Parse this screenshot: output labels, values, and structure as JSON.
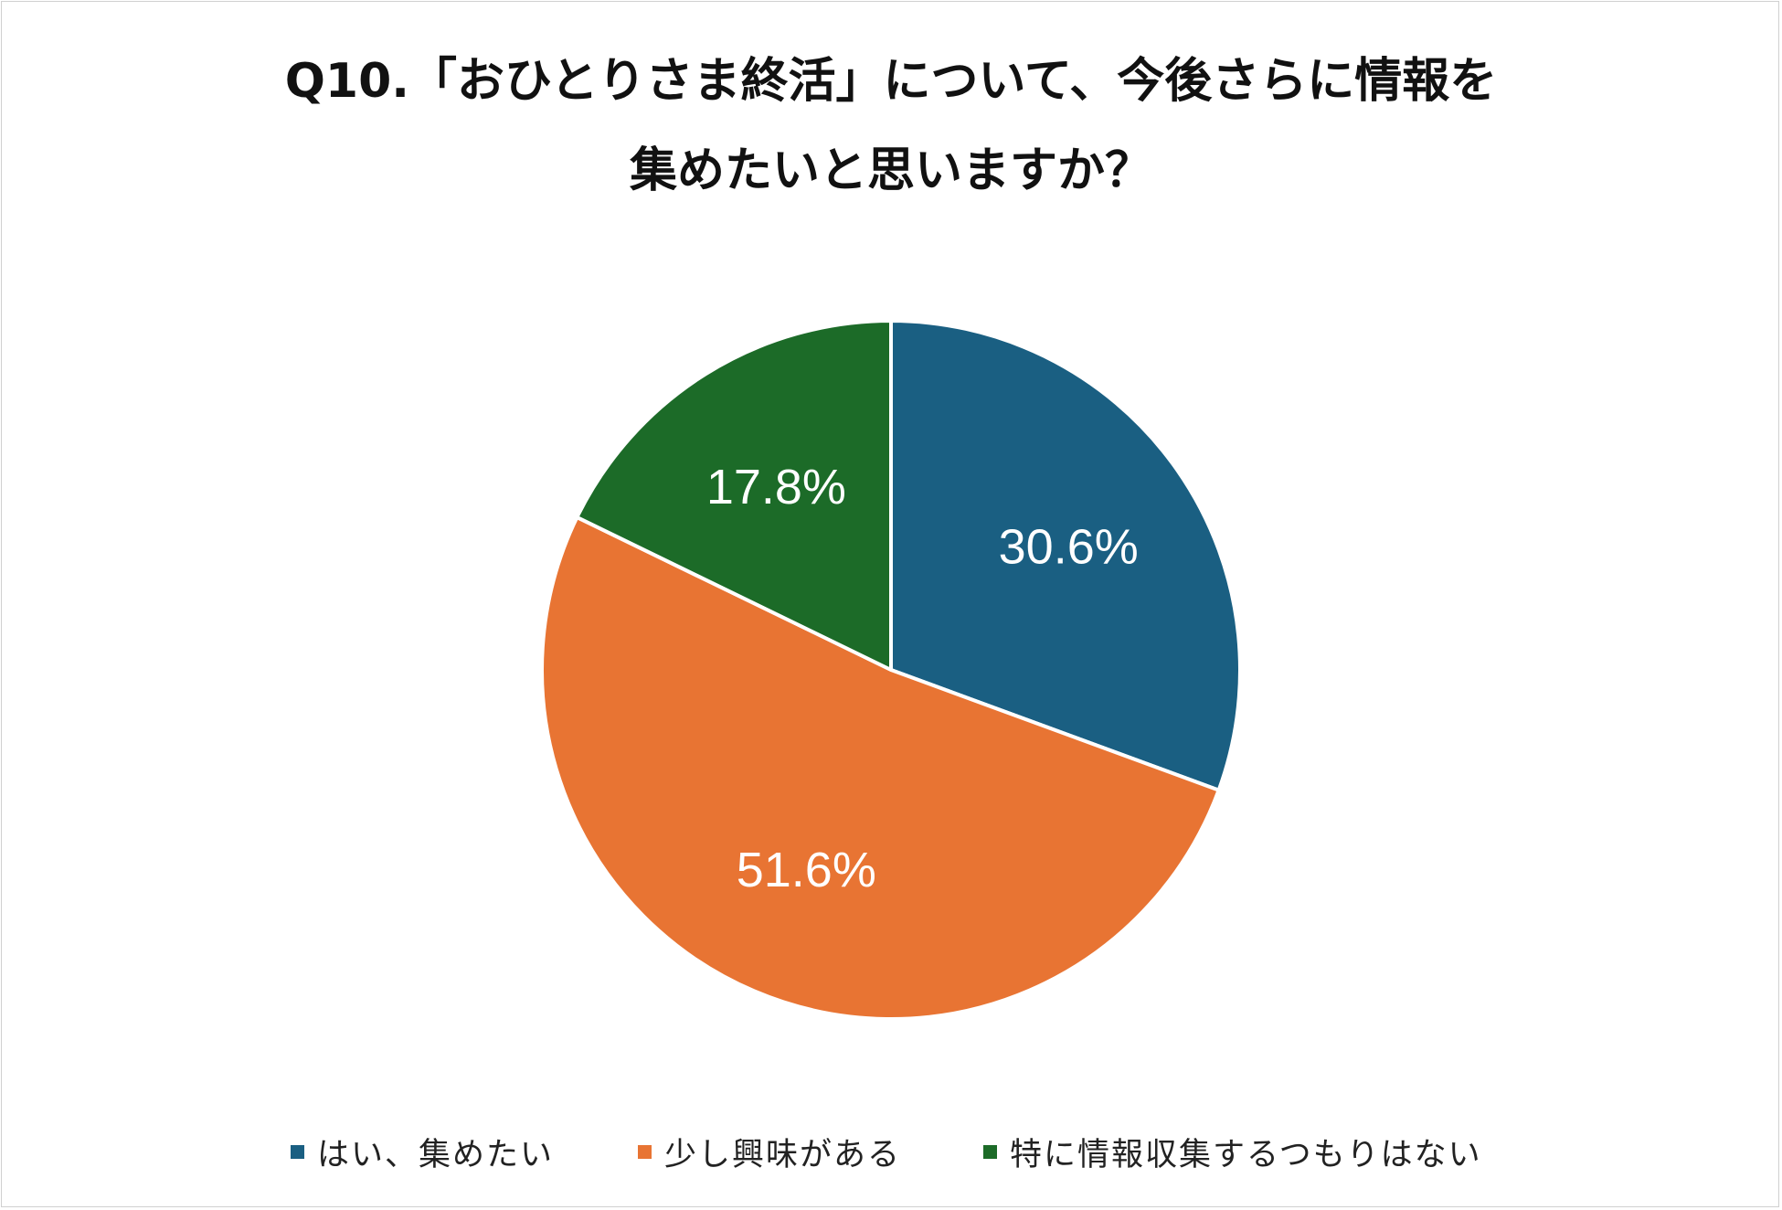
{
  "chart_data": {
    "type": "pie",
    "title_lines": [
      "Q10.「おひとりさま終活」について、今後さらに情報を",
      "集めたいと思いますか？"
    ],
    "categories": [
      "はい、集めたい",
      "少し興味がある",
      "特に情報収集するつもりはない"
    ],
    "values": [
      30.6,
      51.6,
      17.8
    ],
    "data_labels": [
      "30.6%",
      "51.6%",
      "17.8%"
    ],
    "colors": [
      "#1a5f82",
      "#e87433",
      "#1c6b28"
    ],
    "start_angle": "12 o'clock",
    "direction": "clockwise",
    "legend_position": "bottom"
  }
}
